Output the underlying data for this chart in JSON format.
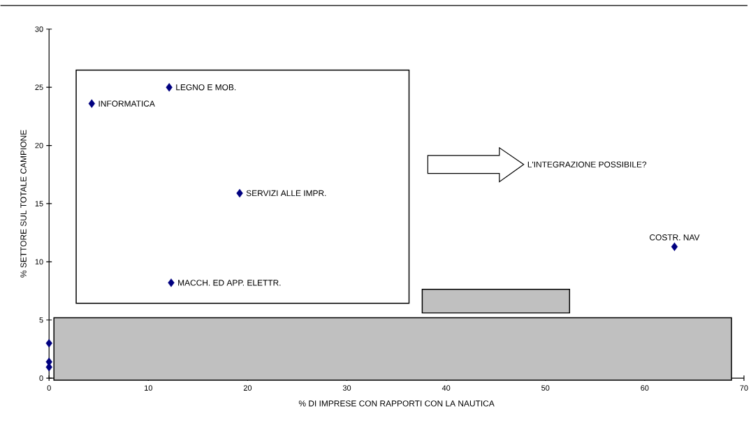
{
  "chart_data": {
    "type": "scatter",
    "xlabel": "% DI IMPRESE CON RAPPORTI CON LA NAUTICA",
    "ylabel": "% SETTORE SUL TOTALE CAMPIONE",
    "x": [
      12.1,
      4.3,
      19.2,
      12.3,
      63.0,
      0,
      0,
      0
    ],
    "values": [
      25.0,
      23.6,
      15.9,
      8.2,
      11.3,
      3.0,
      1.4,
      0.95
    ],
    "color": "#000080",
    "marker": "diamond",
    "xlim": [
      0,
      70
    ],
    "ylim": [
      0,
      30
    ],
    "xticks": [
      0,
      10,
      20,
      30,
      40,
      50,
      60,
      70
    ],
    "yticks": [
      0,
      5,
      10,
      15,
      20,
      25,
      30
    ],
    "annotations": [
      "L'INTEGRAZIONE POSSIBILE?",
      {
        "text": "LEGNO E MOB.",
        "x": 12.1,
        "y": 25.0
      },
      {
        "text": "INFORMATICA",
        "x": 4.3,
        "y": 23.6
      },
      {
        "text": "SERVIZI ALLE IMPR.",
        "x": 19.2,
        "y": 15.9
      },
      {
        "text": "MACCH. ED APP. ELETTR.",
        "x": 12.3,
        "y": 8.2
      },
      {
        "text": "COSTR. NAV",
        "x": 63.0,
        "y": 11.3
      }
    ]
  }
}
